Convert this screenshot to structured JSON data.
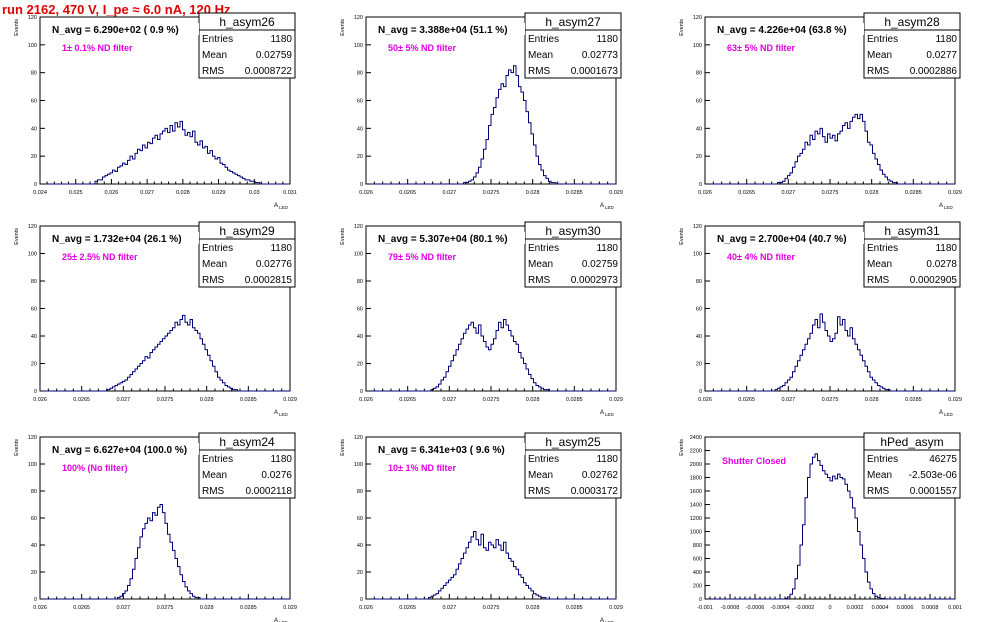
{
  "page": {
    "title": "run 2162,   470 V, I_pe ≈ 6.0 nA, 120 Hz"
  },
  "style": {
    "hist_color": "#00007a",
    "note_color": "#e000e0",
    "title_color": "#e00000"
  },
  "chart_data": [
    {
      "type": "histogram",
      "name": "h_asym26",
      "navg": "N_avg = 6.290e+02 ( 0.9 %)",
      "note": "1± 0.1% ND filter",
      "stats": {
        "entries": "1180",
        "mean": "0.02759",
        "rms": "0.0008722"
      },
      "xlabel": "A",
      "xlabel_sub": "LED",
      "ylabel": "Events",
      "xlim": [
        0.024,
        0.031
      ],
      "ylim": [
        0,
        120
      ],
      "xticks": [
        "0.024",
        "0.025",
        "0.026",
        "0.027",
        "0.028",
        "0.029",
        "0.03",
        "0.031"
      ],
      "yticks": [
        "0",
        "20",
        "40",
        "60",
        "80",
        "100",
        "120"
      ],
      "bins": 100,
      "bars": [
        0,
        0,
        0,
        0,
        0,
        0,
        0,
        0,
        0,
        0,
        0,
        0,
        0,
        0,
        0,
        0,
        0,
        0,
        0,
        0,
        0,
        0,
        2,
        3,
        3,
        5,
        6,
        7,
        8,
        10,
        9,
        12,
        13,
        15,
        14,
        17,
        20,
        18,
        22,
        25,
        24,
        28,
        26,
        30,
        29,
        33,
        35,
        32,
        36,
        38,
        40,
        37,
        42,
        38,
        44,
        41,
        45,
        39,
        35,
        37,
        34,
        38,
        30,
        28,
        31,
        26,
        27,
        22,
        24,
        20,
        18,
        19,
        15,
        14,
        12,
        10,
        9,
        8,
        7,
        6,
        5,
        4,
        3,
        3,
        2,
        2,
        1,
        1,
        0,
        0,
        0,
        0,
        0,
        0,
        0,
        0,
        0,
        0,
        0,
        0
      ]
    },
    {
      "type": "histogram",
      "name": "h_asym27",
      "navg": "N_avg = 3.388e+04 (51.1 %)",
      "note": "50± 5% ND filter",
      "stats": {
        "entries": "1180",
        "mean": "0.02773",
        "rms": "0.0001673"
      },
      "xlabel": "A",
      "xlabel_sub": "LED",
      "ylabel": "Events",
      "xlim": [
        0.026,
        0.029
      ],
      "ylim": [
        0,
        120
      ],
      "xticks": [
        "0.026",
        "0.0265",
        "0.027",
        "0.0275",
        "0.028",
        "0.0285",
        "0.029"
      ],
      "yticks": [
        "0",
        "20",
        "40",
        "60",
        "80",
        "100",
        "120"
      ],
      "bins": 100,
      "bars": [
        0,
        0,
        0,
        0,
        0,
        0,
        0,
        0,
        0,
        0,
        0,
        0,
        0,
        0,
        0,
        0,
        0,
        0,
        0,
        0,
        0,
        0,
        0,
        0,
        0,
        0,
        0,
        0,
        0,
        0,
        0,
        0,
        0,
        0,
        0,
        0,
        0,
        0,
        0,
        1,
        1,
        2,
        3,
        5,
        8,
        12,
        18,
        25,
        32,
        42,
        50,
        55,
        62,
        68,
        72,
        70,
        78,
        82,
        80,
        85,
        78,
        70,
        66,
        60,
        52,
        44,
        36,
        28,
        20,
        14,
        10,
        6,
        4,
        2,
        1,
        1,
        0,
        0,
        0,
        0,
        0,
        0,
        0,
        0,
        0,
        0,
        0,
        0,
        0,
        0,
        0,
        0,
        0,
        0,
        0,
        0,
        0,
        0,
        0,
        0
      ]
    },
    {
      "type": "histogram",
      "name": "h_asym28",
      "navg": "N_avg = 4.226e+04 (63.8 %)",
      "note": "63± 5% ND filter",
      "stats": {
        "entries": "1180",
        "mean": "0.0277",
        "rms": "0.0002886"
      },
      "xlabel": "A",
      "xlabel_sub": "LED",
      "ylabel": "Events",
      "xlim": [
        0.026,
        0.029
      ],
      "ylim": [
        0,
        120
      ],
      "xticks": [
        "0.026",
        "0.0265",
        "0.027",
        "0.0275",
        "0.028",
        "0.0285",
        "0.029"
      ],
      "yticks": [
        "0",
        "20",
        "40",
        "60",
        "80",
        "100",
        "120"
      ],
      "bins": 100,
      "bars": [
        0,
        0,
        0,
        0,
        0,
        0,
        0,
        0,
        0,
        0,
        0,
        0,
        0,
        0,
        0,
        0,
        0,
        0,
        0,
        0,
        0,
        0,
        0,
        0,
        0,
        0,
        0,
        0,
        0,
        1,
        1,
        2,
        4,
        6,
        8,
        12,
        16,
        20,
        22,
        25,
        30,
        28,
        35,
        32,
        38,
        36,
        40,
        34,
        30,
        36,
        33,
        35,
        31,
        36,
        38,
        42,
        44,
        40,
        45,
        48,
        50,
        47,
        50,
        45,
        38,
        30,
        28,
        22,
        18,
        14,
        10,
        7,
        5,
        3,
        2,
        1,
        1,
        0,
        0,
        0,
        0,
        0,
        0,
        0,
        0,
        0,
        0,
        0,
        0,
        0,
        0,
        0,
        0,
        0,
        0,
        0,
        0,
        0,
        0,
        0
      ]
    },
    {
      "type": "histogram",
      "name": "h_asym29",
      "navg": "N_avg = 1.732e+04 (26.1 %)",
      "note": "25± 2.5% ND filter",
      "stats": {
        "entries": "1180",
        "mean": "0.02776",
        "rms": "0.0002815"
      },
      "xlabel": "A",
      "xlabel_sub": "LED",
      "ylabel": "Events",
      "xlim": [
        0.026,
        0.029
      ],
      "ylim": [
        0,
        120
      ],
      "xticks": [
        "0.026",
        "0.0265",
        "0.027",
        "0.0275",
        "0.028",
        "0.0285",
        "0.029"
      ],
      "yticks": [
        "0",
        "20",
        "40",
        "60",
        "80",
        "100",
        "120"
      ],
      "bins": 100,
      "bars": [
        0,
        0,
        0,
        0,
        0,
        0,
        0,
        0,
        0,
        0,
        0,
        0,
        0,
        0,
        0,
        0,
        0,
        0,
        0,
        0,
        0,
        0,
        0,
        0,
        0,
        0,
        0,
        1,
        2,
        3,
        4,
        5,
        6,
        7,
        8,
        10,
        12,
        14,
        16,
        18,
        20,
        22,
        25,
        24,
        28,
        30,
        32,
        34,
        36,
        38,
        40,
        42,
        44,
        46,
        50,
        48,
        52,
        55,
        50,
        48,
        52,
        46,
        44,
        42,
        38,
        34,
        30,
        26,
        22,
        18,
        14,
        10,
        8,
        6,
        4,
        3,
        2,
        1,
        1,
        0,
        0,
        0,
        0,
        0,
        0,
        0,
        0,
        0,
        0,
        0,
        0,
        0,
        0,
        0,
        0,
        0,
        0,
        0,
        0,
        0
      ]
    },
    {
      "type": "histogram",
      "name": "h_asym30",
      "navg": "N_avg = 5.307e+04 (80.1 %)",
      "note": "79± 5% ND filter",
      "stats": {
        "entries": "1180",
        "mean": "0.02759",
        "rms": "0.0002973"
      },
      "xlabel": "A",
      "xlabel_sub": "LED",
      "ylabel": "Events",
      "xlim": [
        0.026,
        0.029
      ],
      "ylim": [
        0,
        120
      ],
      "xticks": [
        "0.026",
        "0.0265",
        "0.027",
        "0.0275",
        "0.028",
        "0.0285",
        "0.029"
      ],
      "yticks": [
        "0",
        "20",
        "40",
        "60",
        "80",
        "100",
        "120"
      ],
      "bins": 100,
      "bars": [
        0,
        0,
        0,
        0,
        0,
        0,
        0,
        0,
        0,
        0,
        0,
        0,
        0,
        0,
        0,
        0,
        0,
        0,
        0,
        0,
        0,
        0,
        0,
        0,
        0,
        0,
        1,
        2,
        3,
        5,
        8,
        10,
        14,
        18,
        22,
        26,
        30,
        34,
        38,
        42,
        45,
        48,
        50,
        46,
        42,
        48,
        40,
        36,
        32,
        30,
        34,
        38,
        44,
        50,
        46,
        52,
        48,
        44,
        40,
        36,
        34,
        28,
        24,
        20,
        16,
        12,
        9,
        6,
        4,
        3,
        2,
        1,
        1,
        0,
        0,
        0,
        0,
        0,
        0,
        0,
        0,
        0,
        0,
        0,
        0,
        0,
        0,
        0,
        0,
        0,
        0,
        0,
        0,
        0,
        0,
        0,
        0,
        0,
        0,
        0
      ]
    },
    {
      "type": "histogram",
      "name": "h_asym31",
      "navg": "N_avg = 2.700e+04 (40.7 %)",
      "note": "40± 4% ND filter",
      "stats": {
        "entries": "1180",
        "mean": "0.0278",
        "rms": "0.0002905"
      },
      "xlabel": "A",
      "xlabel_sub": "LED",
      "ylabel": "Events",
      "xlim": [
        0.026,
        0.029
      ],
      "ylim": [
        0,
        120
      ],
      "xticks": [
        "0.026",
        "0.0265",
        "0.027",
        "0.0275",
        "0.028",
        "0.0285",
        "0.029"
      ],
      "yticks": [
        "0",
        "20",
        "40",
        "60",
        "80",
        "100",
        "120"
      ],
      "bins": 100,
      "bars": [
        0,
        0,
        0,
        0,
        0,
        0,
        0,
        0,
        0,
        0,
        0,
        0,
        0,
        0,
        0,
        0,
        0,
        0,
        0,
        0,
        0,
        0,
        0,
        0,
        0,
        0,
        0,
        0,
        1,
        2,
        3,
        4,
        6,
        8,
        10,
        14,
        18,
        22,
        26,
        30,
        34,
        38,
        42,
        48,
        52,
        46,
        56,
        50,
        44,
        40,
        36,
        38,
        42,
        54,
        48,
        52,
        44,
        40,
        46,
        38,
        34,
        30,
        26,
        22,
        18,
        14,
        10,
        8,
        6,
        4,
        3,
        2,
        1,
        1,
        0,
        0,
        0,
        0,
        0,
        0,
        0,
        0,
        0,
        0,
        0,
        0,
        0,
        0,
        0,
        0,
        0,
        0,
        0,
        0,
        0,
        0,
        0,
        0,
        0,
        0
      ]
    },
    {
      "type": "histogram",
      "name": "h_asym24",
      "navg": "N_avg = 6.627e+04 (100.0 %)",
      "note": "100% (No filter)",
      "stats": {
        "entries": "1180",
        "mean": "0.0276",
        "rms": "0.0002118"
      },
      "xlabel": "A",
      "xlabel_sub": "LED",
      "ylabel": "Events",
      "xlim": [
        0.026,
        0.029
      ],
      "ylim": [
        0,
        120
      ],
      "xticks": [
        "0.026",
        "0.0265",
        "0.027",
        "0.0275",
        "0.028",
        "0.0285",
        "0.029"
      ],
      "yticks": [
        "0",
        "20",
        "40",
        "60",
        "80",
        "100",
        "120"
      ],
      "bins": 100,
      "bars": [
        0,
        0,
        0,
        0,
        0,
        0,
        0,
        0,
        0,
        0,
        0,
        0,
        0,
        0,
        0,
        0,
        0,
        0,
        0,
        0,
        0,
        0,
        0,
        0,
        0,
        0,
        0,
        0,
        0,
        0,
        0,
        1,
        2,
        4,
        6,
        10,
        15,
        22,
        30,
        38,
        46,
        52,
        56,
        60,
        58,
        64,
        62,
        68,
        70,
        64,
        56,
        48,
        42,
        36,
        30,
        24,
        18,
        13,
        9,
        6,
        4,
        2,
        1,
        1,
        0,
        0,
        0,
        0,
        0,
        0,
        0,
        0,
        0,
        0,
        0,
        0,
        0,
        0,
        0,
        0,
        0,
        0,
        0,
        0,
        0,
        0,
        0,
        0,
        0,
        0,
        0,
        0,
        0,
        0,
        0,
        0,
        0,
        0,
        0,
        0
      ]
    },
    {
      "type": "histogram",
      "name": "h_asym25",
      "navg": "N_avg = 6.341e+03 ( 9.6 %)",
      "note": "10± 1% ND filter",
      "stats": {
        "entries": "1180",
        "mean": "0.02762",
        "rms": "0.0003172"
      },
      "xlabel": "A",
      "xlabel_sub": "LED",
      "ylabel": "Events",
      "xlim": [
        0.026,
        0.029
      ],
      "ylim": [
        0,
        120
      ],
      "xticks": [
        "0.026",
        "0.0265",
        "0.027",
        "0.0275",
        "0.028",
        "0.0285",
        "0.029"
      ],
      "yticks": [
        "0",
        "20",
        "40",
        "60",
        "80",
        "100",
        "120"
      ],
      "bins": 100,
      "bars": [
        0,
        0,
        0,
        0,
        0,
        0,
        0,
        0,
        0,
        0,
        0,
        0,
        0,
        0,
        0,
        0,
        0,
        0,
        0,
        0,
        0,
        0,
        0,
        0,
        0,
        1,
        2,
        3,
        4,
        6,
        8,
        10,
        12,
        14,
        16,
        18,
        22,
        26,
        30,
        34,
        38,
        42,
        46,
        50,
        44,
        40,
        48,
        38,
        36,
        42,
        40,
        38,
        44,
        40,
        36,
        42,
        34,
        30,
        28,
        24,
        22,
        18,
        16,
        12,
        10,
        8,
        6,
        4,
        3,
        2,
        1,
        1,
        0,
        0,
        0,
        0,
        0,
        0,
        0,
        0,
        0,
        0,
        0,
        0,
        0,
        0,
        0,
        0,
        0,
        0,
        0,
        0,
        0,
        0,
        0,
        0,
        0,
        0,
        0,
        0
      ]
    },
    {
      "type": "histogram",
      "name": "hPed_asym",
      "navg": "",
      "note": "Shutter Closed",
      "stats": {
        "entries": "46275",
        "mean": "-2.503e-06",
        "rms": "0.0001557"
      },
      "xlabel": "",
      "xlabel_sub": "",
      "ylabel": "Events",
      "xlim": [
        -0.001,
        0.001
      ],
      "ylim": [
        0,
        2400
      ],
      "xticks": [
        "-0.001",
        "-0.0008",
        "-0.0006",
        "-0.0004",
        "-0.0002",
        "0",
        "0.0002",
        "0.0004",
        "0.0006",
        "0.0008",
        "0.001"
      ],
      "yticks": [
        "0",
        "200",
        "400",
        "600",
        "800",
        "1000",
        "1200",
        "1400",
        "1600",
        "1800",
        "2000",
        "2200",
        "2400"
      ],
      "bins": 100,
      "bars": [
        0,
        0,
        0,
        0,
        0,
        0,
        0,
        0,
        0,
        0,
        0,
        0,
        0,
        0,
        0,
        0,
        0,
        0,
        0,
        0,
        0,
        0,
        0,
        0,
        0,
        0,
        0,
        0,
        0,
        0,
        0,
        0,
        10,
        30,
        70,
        150,
        300,
        500,
        800,
        1100,
        1500,
        1800,
        2000,
        2100,
        2150,
        2050,
        1980,
        1900,
        1850,
        1800,
        1750,
        1820,
        1780,
        1850,
        1800,
        1780,
        1700,
        1600,
        1500,
        1350,
        1200,
        1000,
        800,
        600,
        400,
        250,
        150,
        80,
        40,
        20,
        10,
        5,
        2,
        0,
        0,
        0,
        0,
        0,
        0,
        0,
        0,
        0,
        0,
        0,
        0,
        0,
        0,
        0,
        0,
        0,
        0,
        0,
        0,
        0,
        0,
        0,
        0,
        0,
        0,
        0
      ]
    }
  ]
}
